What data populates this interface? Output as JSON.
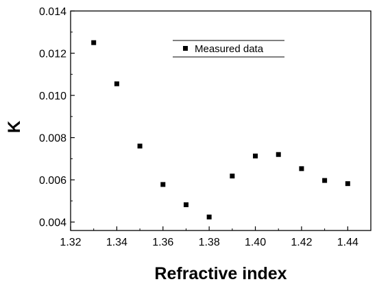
{
  "chart_data": {
    "type": "scatter",
    "title": "",
    "xlabel": "Refractive index",
    "ylabel": "K",
    "xlim": [
      1.32,
      1.45
    ],
    "ylim": [
      0.0036,
      0.014
    ],
    "x_ticks": [
      "1.32",
      "1.34",
      "1.36",
      "1.38",
      "1.40",
      "1.42",
      "1.44"
    ],
    "y_ticks": [
      "0.004",
      "0.006",
      "0.008",
      "0.010",
      "0.012",
      "0.014"
    ],
    "grid": false,
    "legend_position": "top-center",
    "series": [
      {
        "name": "Measured data",
        "color": "#000000",
        "marker": "square",
        "x": [
          1.33,
          1.34,
          1.35,
          1.36,
          1.37,
          1.38,
          1.39,
          1.4,
          1.41,
          1.42,
          1.43,
          1.44
        ],
        "y": [
          0.0125,
          0.01055,
          0.0076,
          0.00578,
          0.00482,
          0.00424,
          0.00618,
          0.00713,
          0.0072,
          0.00653,
          0.00597,
          0.00582
        ]
      }
    ]
  }
}
